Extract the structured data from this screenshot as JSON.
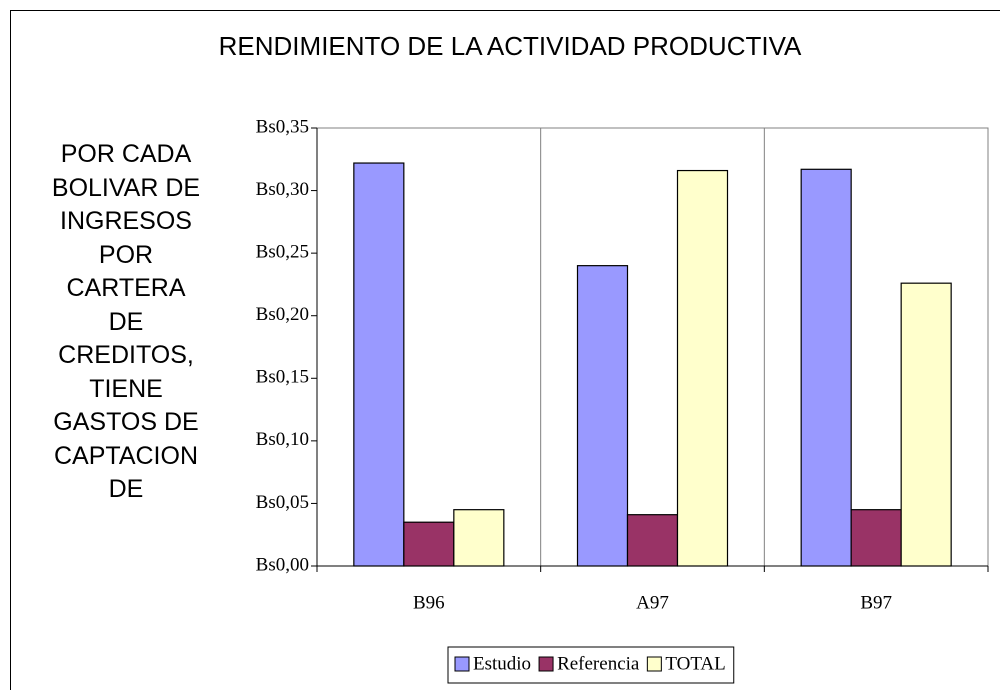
{
  "chart_data": {
    "type": "bar",
    "title": "RENDIMIENTO DE LA ACTIVIDAD PRODUCTIVA",
    "ylabel": "POR CADA\nBOLIVAR DE\nINGRESOS\nPOR\nCARTERA\nDE\nCREDITOS,\nTIENE\nGASTOS DE\nCAPTACION\nDE",
    "categories": [
      "B96",
      "A97",
      "B97"
    ],
    "series": [
      {
        "name": "Estudio",
        "color": "#9999ff",
        "values": [
          0.322,
          0.24,
          0.317
        ]
      },
      {
        "name": "Referencia",
        "color": "#993366",
        "values": [
          0.035,
          0.041,
          0.045
        ]
      },
      {
        "name": "TOTAL",
        "color": "#ffffcc",
        "values": [
          0.045,
          0.316,
          0.226
        ]
      }
    ],
    "ylim": [
      0,
      0.35
    ],
    "yticks": [
      {
        "value": 0,
        "label": "Bs0,00"
      },
      {
        "value": 0.05,
        "label": "Bs0,05"
      },
      {
        "value": 0.1,
        "label": "Bs0,10"
      },
      {
        "value": 0.15,
        "label": "Bs0,15"
      },
      {
        "value": 0.2,
        "label": "Bs0,20"
      },
      {
        "value": 0.25,
        "label": "Bs0,25"
      },
      {
        "value": 0.3,
        "label": "Bs0,30"
      },
      {
        "value": 0.35,
        "label": "Bs0,35"
      }
    ],
    "grid": true,
    "legend": "bottom"
  }
}
